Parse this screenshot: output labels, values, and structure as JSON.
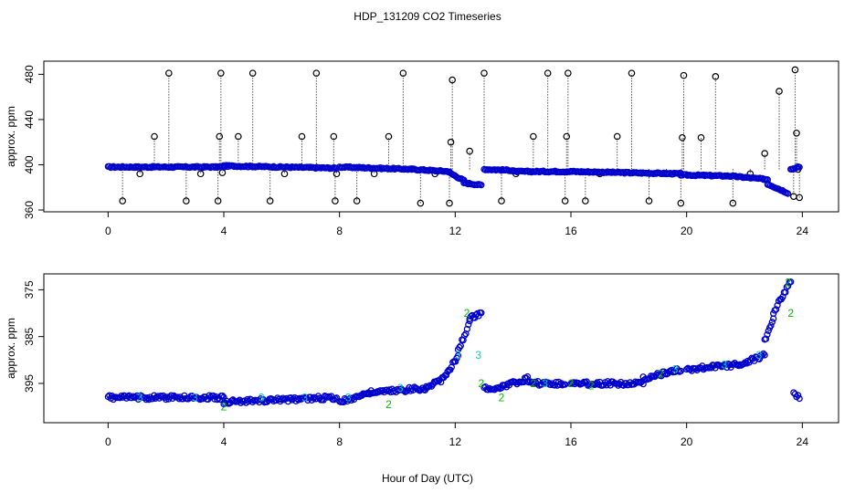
{
  "title": "HDP_131209  CO2 Timeseries",
  "xlabel": "Hour of Day (UTC)",
  "colors": {
    "points": "#0000cc",
    "marker_green": "#00bb00",
    "marker_cyan": "#00cccc",
    "outlier": "#000000",
    "frame": "#000000"
  },
  "chart_data": [
    {
      "type": "scatter",
      "title": "HDP_131209  CO2 Timeseries",
      "ylabel": "approx. ppm",
      "xlim": [
        -2,
        25
      ],
      "ylim": [
        360,
        490
      ],
      "x_ticks": [
        0,
        4,
        8,
        12,
        16,
        20,
        24
      ],
      "y_ticks": [
        360,
        400,
        440,
        480
      ],
      "grid": false,
      "segments": [
        {
          "x": [
            0.0,
            4.0
          ],
          "y": [
            398,
            398
          ]
        },
        {
          "x": [
            4.0,
            7.9
          ],
          "y": [
            399,
            397
          ]
        },
        {
          "x": [
            8.0,
            10.5
          ],
          "y": [
            398,
            396
          ]
        },
        {
          "x": [
            10.5,
            11.8
          ],
          "y": [
            396,
            394
          ]
        },
        {
          "x": [
            11.8,
            12.3
          ],
          "y": [
            393,
            386
          ]
        },
        {
          "x": [
            12.3,
            12.9
          ],
          "y": [
            384,
            382
          ]
        },
        {
          "x": [
            13.0,
            14.0
          ],
          "y": [
            396,
            395
          ]
        },
        {
          "x": [
            14.0,
            16.0
          ],
          "y": [
            394,
            394
          ]
        },
        {
          "x": [
            16.0,
            19.8
          ],
          "y": [
            394,
            392
          ]
        },
        {
          "x": [
            19.8,
            21.5
          ],
          "y": [
            391,
            390
          ]
        },
        {
          "x": [
            21.5,
            22.8
          ],
          "y": [
            390,
            387
          ]
        },
        {
          "x": [
            22.8,
            23.5
          ],
          "y": [
            383,
            375
          ]
        },
        {
          "x": [
            23.6,
            23.9
          ],
          "y": [
            396,
            398
          ]
        }
      ],
      "outliers": {
        "x": [
          0.5,
          1.1,
          1.6,
          2.1,
          2.7,
          3.2,
          3.8,
          3.85,
          3.9,
          3.95,
          4.5,
          5.0,
          5.6,
          6.1,
          6.7,
          7.2,
          7.8,
          7.85,
          7.9,
          8.6,
          9.2,
          9.7,
          10.2,
          10.8,
          11.3,
          11.8,
          11.85,
          11.9,
          12.5,
          13.0,
          13.6,
          14.1,
          14.7,
          15.2,
          15.8,
          15.85,
          15.9,
          16.5,
          17.0,
          17.6,
          18.1,
          18.7,
          19.3,
          19.8,
          19.85,
          19.9,
          20.5,
          21.0,
          21.6,
          22.2,
          22.7,
          23.2,
          23.7,
          23.75,
          23.8,
          23.85,
          23.9
        ],
        "y": [
          368,
          392,
          425,
          481,
          368,
          392,
          368,
          425,
          481,
          393,
          425,
          481,
          368,
          392,
          425,
          481,
          425,
          368,
          392,
          368,
          392,
          425,
          481,
          366,
          392,
          366,
          420,
          475,
          412,
          481,
          368,
          392,
          425,
          481,
          368,
          425,
          481,
          368,
          392,
          425,
          481,
          368,
          392,
          366,
          424,
          479,
          424,
          478,
          366,
          392,
          410,
          465,
          372,
          484,
          428,
          396,
          371
        ]
      }
    },
    {
      "type": "scatter",
      "ylabel": "approx. ppm",
      "xlim": [
        -2,
        25
      ],
      "ylim": [
        372,
        403
      ],
      "y_axis_reversed": true,
      "x_ticks": [
        0,
        4,
        8,
        12,
        16,
        20,
        24
      ],
      "y_ticks": [
        375,
        385,
        395
      ],
      "grid": false,
      "segments": [
        {
          "x": [
            0.0,
            4.0
          ],
          "y": [
            398,
            398
          ]
        },
        {
          "x": [
            4.0,
            7.9
          ],
          "y": [
            399,
            398
          ]
        },
        {
          "x": [
            8.0,
            9.0
          ],
          "y": [
            399,
            397
          ]
        },
        {
          "x": [
            9.0,
            11.0
          ],
          "y": [
            397,
            396
          ]
        },
        {
          "x": [
            11.0,
            11.6
          ],
          "y": [
            396,
            394
          ]
        },
        {
          "x": [
            11.6,
            12.1
          ],
          "y": [
            394,
            389
          ]
        },
        {
          "x": [
            12.1,
            12.5
          ],
          "y": [
            388,
            382
          ]
        },
        {
          "x": [
            12.5,
            12.9
          ],
          "y": [
            381,
            380
          ]
        },
        {
          "x": [
            13.0,
            13.5
          ],
          "y": [
            396,
            396
          ]
        },
        {
          "x": [
            13.5,
            14.5
          ],
          "y": [
            396,
            394
          ]
        },
        {
          "x": [
            14.5,
            15.8
          ],
          "y": [
            395,
            395
          ]
        },
        {
          "x": [
            16.0,
            18.5
          ],
          "y": [
            395,
            395
          ]
        },
        {
          "x": [
            18.5,
            19.8
          ],
          "y": [
            394,
            392
          ]
        },
        {
          "x": [
            20.0,
            21.8
          ],
          "y": [
            392,
            391
          ]
        },
        {
          "x": [
            21.8,
            22.7
          ],
          "y": [
            391,
            389
          ]
        },
        {
          "x": [
            22.7,
            23.0
          ],
          "y": [
            386,
            381
          ]
        },
        {
          "x": [
            23.0,
            23.6
          ],
          "y": [
            380,
            373
          ]
        },
        {
          "x": [
            23.7,
            23.9
          ],
          "y": [
            397,
            398
          ]
        }
      ],
      "green_markers": {
        "x": [
          4.0,
          9.7,
          13.6,
          12.4,
          16.7,
          12.9,
          23.5,
          23.6,
          14.7,
          19.1,
          16.0
        ],
        "y": [
          400,
          399.5,
          398,
          380,
          395.5,
          395,
          373.5,
          380,
          395,
          393,
          395
        ],
        "labels": [
          "2",
          "2",
          "2",
          "2",
          "2",
          "2",
          "2",
          "2",
          "2",
          "2",
          "2"
        ]
      },
      "teal_markers": {
        "x": [
          1.1,
          3.0,
          5.3,
          6.8,
          8.3,
          10.1,
          12.1,
          12.8,
          15.1,
          19.6,
          21.3,
          22.5
        ],
        "y": [
          398,
          398,
          398,
          398,
          398,
          396,
          389,
          389,
          395,
          392,
          391,
          389
        ],
        "labels": [
          "3",
          "3",
          "3",
          "3",
          "3",
          "3",
          "3",
          "3",
          "3",
          "3",
          "3",
          "3"
        ]
      }
    }
  ]
}
